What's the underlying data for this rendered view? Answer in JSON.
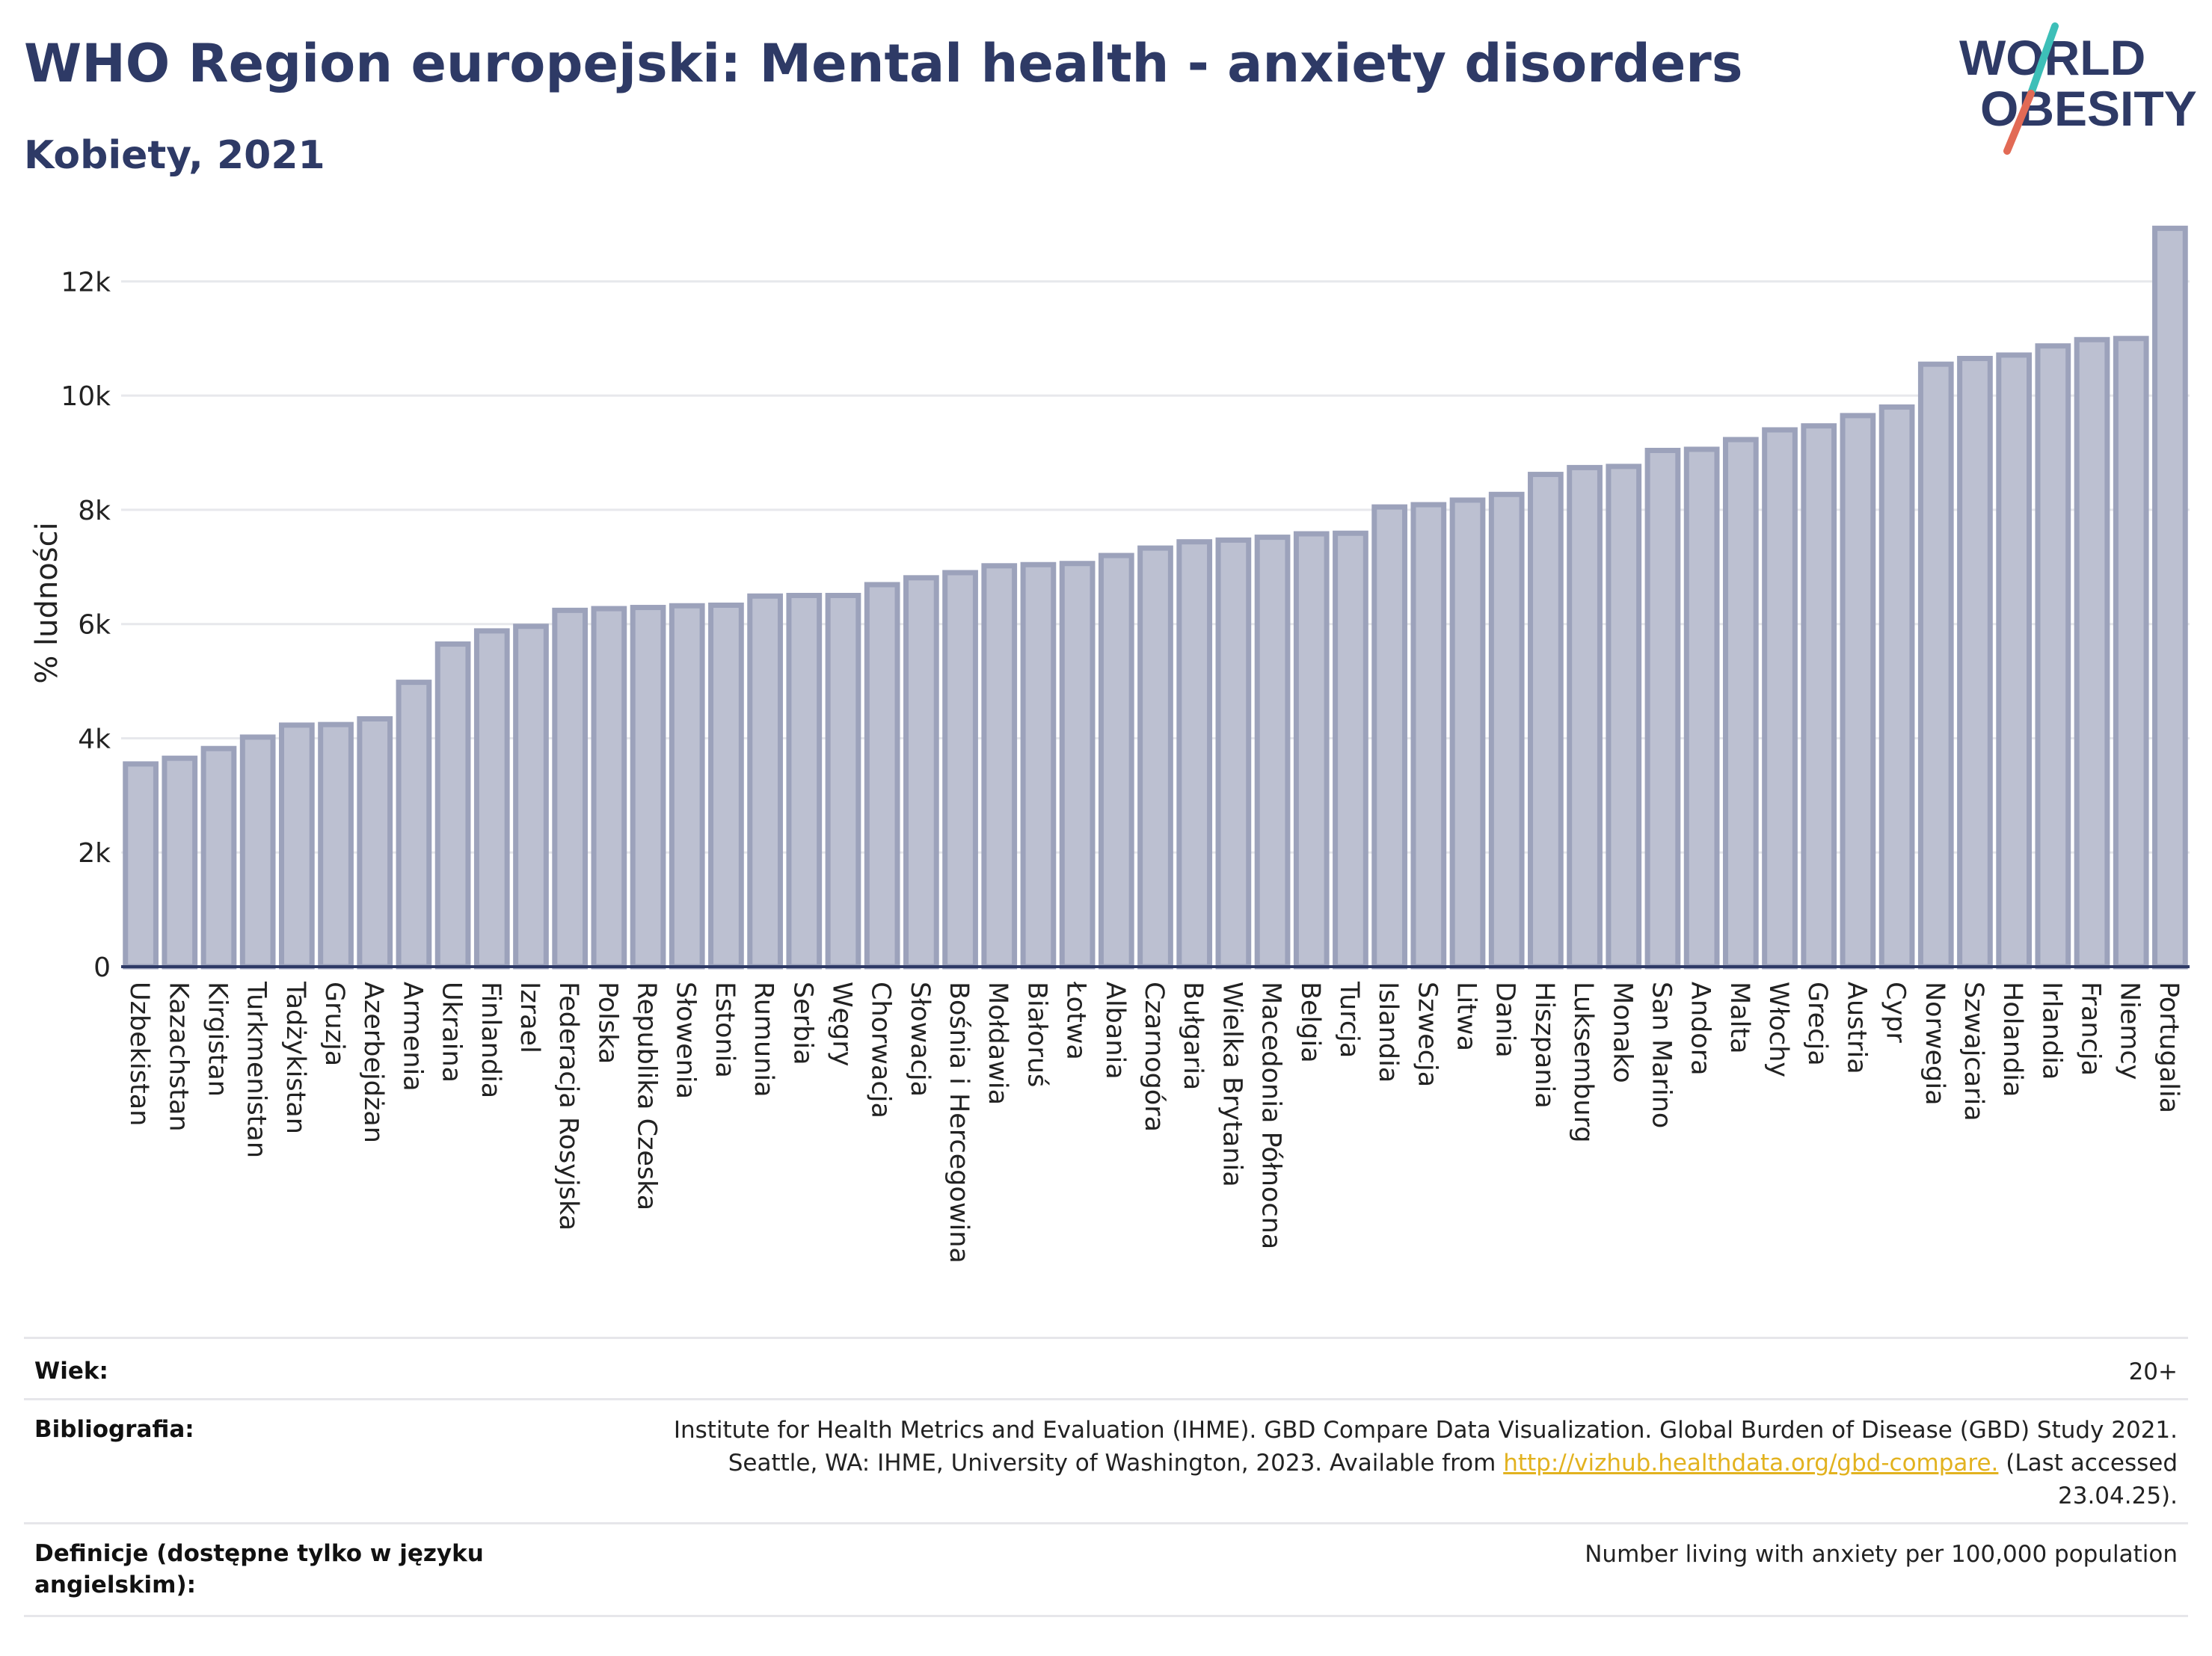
{
  "header": {
    "title": "WHO Region europejski: Mental health - anxiety disorders",
    "subtitle": "Kobiety, 2021"
  },
  "logo": {
    "line1": "WORLD",
    "line2": "OBESITY",
    "text_color": "#2e3a66",
    "slash_teal": "#3dbfb8",
    "slash_coral": "#e26a55"
  },
  "colors": {
    "bar_fill": "#bcc0d1",
    "bar_stroke": "#9ca2bb",
    "axis": "#2e3a66",
    "link": "#e2b21f"
  },
  "chart_data": {
    "type": "bar",
    "ylabel": "% ludności",
    "xlabel": "",
    "ylim": [
      0,
      13000
    ],
    "yticks": [
      0,
      2000,
      4000,
      6000,
      8000,
      10000,
      12000
    ],
    "ytick_labels": [
      "0",
      "2k",
      "4k",
      "6k",
      "8k",
      "10k",
      "12k"
    ],
    "grid": true,
    "categories": [
      "Uzbekistan",
      "Kazachstan",
      "Kirgistan",
      "Turkmenistan",
      "Tadżykistan",
      "Gruzja",
      "Azerbejdżan",
      "Armenia",
      "Ukraina",
      "Finlandia",
      "Izrael",
      "Federacja Rosyjska",
      "Polska",
      "Republika Czeska",
      "Słowenia",
      "Estonia",
      "Rumunia",
      "Serbia",
      "Węgry",
      "Chorwacja",
      "Słowacja",
      "Bośnia i Hercegowina",
      "Mołdawia",
      "Białoruś",
      "Łotwa",
      "Albania",
      "Czarnogóra",
      "Bułgaria",
      "Wielka Brytania",
      "Macedonia Północna",
      "Belgia",
      "Turcja",
      "Islandia",
      "Szwecja",
      "Litwa",
      "Dania",
      "Hiszpania",
      "Luksemburg",
      "Monako",
      "San Marino",
      "Andora",
      "Malta",
      "Włochy",
      "Grecja",
      "Austria",
      "Cypr",
      "Norwegia",
      "Szwajcaria",
      "Holandia",
      "Irlandia",
      "Francja",
      "Niemcy",
      "Portugalia"
    ],
    "values": [
      3550,
      3650,
      3820,
      4020,
      4230,
      4240,
      4340,
      4980,
      5650,
      5880,
      5960,
      6240,
      6270,
      6290,
      6320,
      6330,
      6490,
      6500,
      6500,
      6690,
      6810,
      6900,
      7020,
      7040,
      7060,
      7200,
      7330,
      7440,
      7470,
      7520,
      7580,
      7590,
      8050,
      8090,
      8170,
      8270,
      8620,
      8740,
      8760,
      9040,
      9060,
      9230,
      9400,
      9470,
      9650,
      9800,
      10550,
      10650,
      10710,
      10870,
      10980,
      11000,
      12930
    ]
  },
  "info": {
    "age_label": "Wiek:",
    "age_value": "20+",
    "biblio_label": "Bibliografia:",
    "biblio_line1": "Institute for Health Metrics and Evaluation (IHME). GBD Compare Data Visualization. Global Burden of Disease (GBD) Study 2021.",
    "biblio_line2_pre": "Seattle, WA: IHME, University of Washington, 2023. Available from ",
    "biblio_link": "http://vizhub.healthdata.org/gbd-compare.",
    "biblio_line2_post": " (Last accessed",
    "biblio_line3": "23.04.25).",
    "def_label_line1": "Definicje (dostępne tylko w języku",
    "def_label_line2": "angielskim):",
    "def_value": "Number living with anxiety per 100,000 population"
  }
}
